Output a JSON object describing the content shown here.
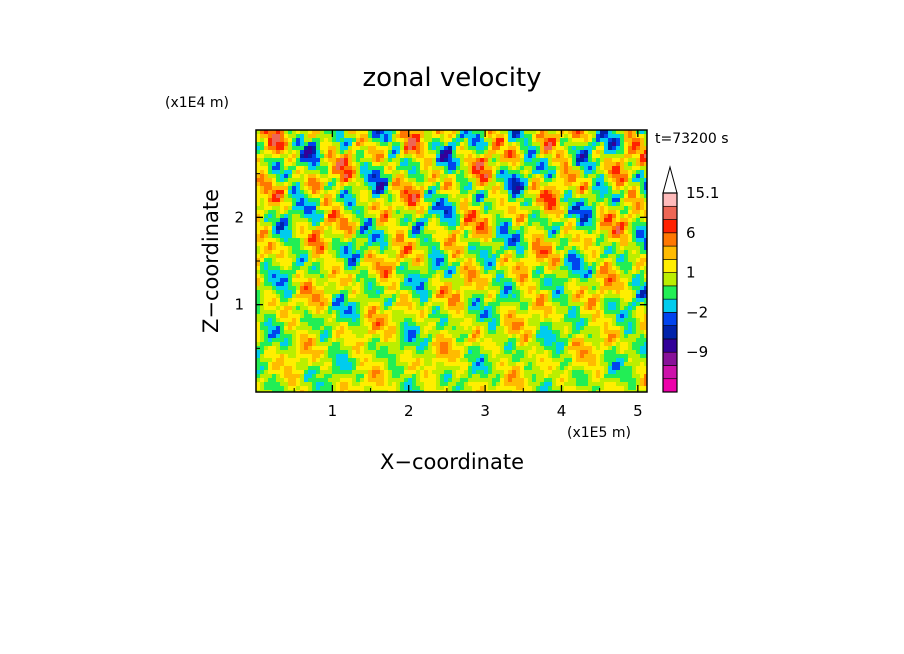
{
  "chart_data": {
    "type": "heatmap",
    "title": "zonal velocity",
    "xlabel": "X−coordinate",
    "ylabel": "Z−coordinate",
    "x_scale_label": "(x1E5 m)",
    "y_scale_label": "(x1E4 m)",
    "time_label": "t=73200 s",
    "x_ticks": [
      "1",
      "2",
      "3",
      "4",
      "5"
    ],
    "x_tick_values": [
      1,
      2,
      3,
      4,
      5
    ],
    "y_ticks": [
      "1",
      "2"
    ],
    "y_tick_values": [
      1,
      2
    ],
    "xlim": [
      0,
      5.12
    ],
    "ylim": [
      0,
      3.0
    ],
    "colorbar": {
      "extend_max": true,
      "labels": [
        {
          "text": "15.1",
          "value": 15.1
        },
        {
          "text": "6",
          "value": 6
        },
        {
          "text": "1",
          "value": 1
        },
        {
          "text": "−2",
          "value": -2
        },
        {
          "text": "−9",
          "value": -9
        }
      ],
      "levels": [
        -15,
        -12,
        -9,
        -6,
        -4,
        -2,
        -1,
        0,
        1,
        2,
        4,
        6,
        9,
        12,
        15.1
      ],
      "colors": [
        "#ee00aa",
        "#cc11aa",
        "#881199",
        "#330099",
        "#0022aa",
        "#0044ee",
        "#00ccee",
        "#22ee55",
        "#bbee00",
        "#ffee00",
        "#ffbb00",
        "#ff7700",
        "#ff2200",
        "#ee6655",
        "#ffbbbb"
      ]
    }
  }
}
